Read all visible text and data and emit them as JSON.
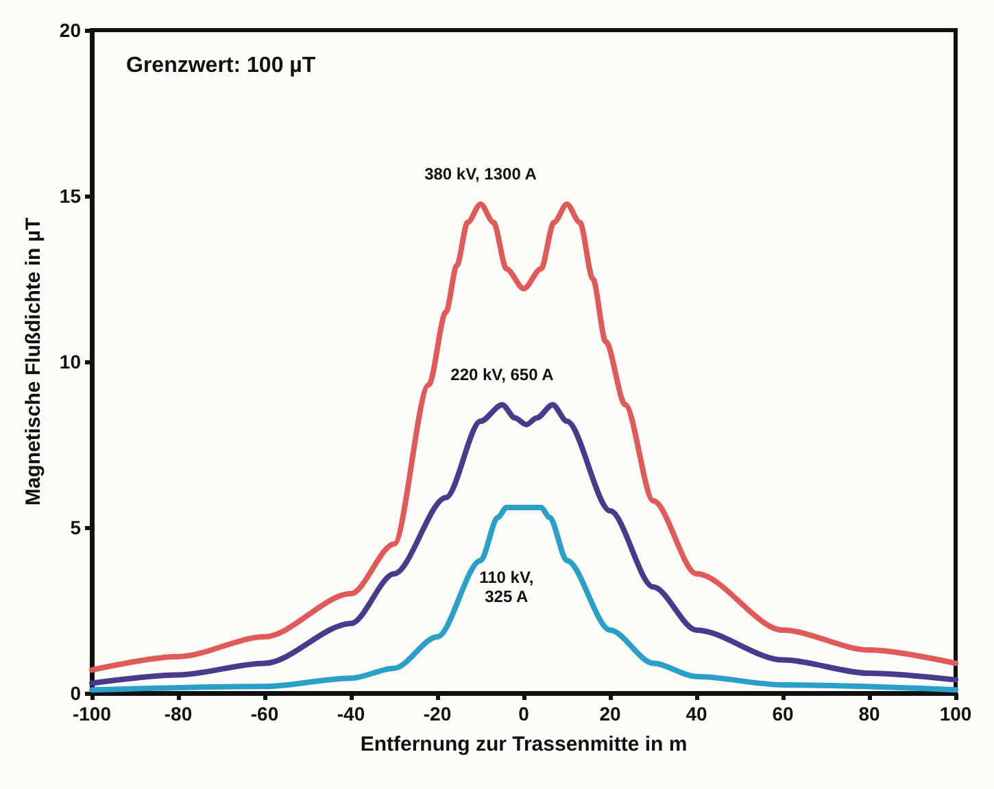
{
  "chart_data": {
    "type": "line",
    "xlabel": "Entfernung zur Trassenmitte in m",
    "ylabel": "Magnetische Flußdichte in µT",
    "xlim": [
      -100,
      100
    ],
    "xticks": [
      -100,
      -80,
      -60,
      -40,
      -20,
      0,
      20,
      40,
      60,
      80,
      100
    ],
    "ylim": [
      0,
      20
    ],
    "yticks": [
      0,
      5,
      10,
      15,
      20
    ],
    "grid": false,
    "marker": "none",
    "line_style": "solid",
    "series": [
      {
        "name": "380 kV, 1300 A",
        "color": "#e05a5a",
        "x": [
          -100,
          -80,
          -60,
          -40,
          -30,
          -22,
          -18,
          -15.5,
          -13,
          -10,
          -7,
          -4,
          0,
          4,
          7,
          10,
          13,
          16,
          19,
          23.5,
          30,
          40,
          60,
          80,
          100
        ],
        "values": [
          0.7,
          1.1,
          1.7,
          3.0,
          4.5,
          9.3,
          11.5,
          12.9,
          14.2,
          14.75,
          14.2,
          12.8,
          12.2,
          12.8,
          14.2,
          14.75,
          14.2,
          12.5,
          10.6,
          8.7,
          5.8,
          3.6,
          1.9,
          1.3,
          0.9
        ]
      },
      {
        "name": "220 kV, 650 A",
        "color": "#4a3a8c",
        "x": [
          -100,
          -80,
          -60,
          -40,
          -30,
          -18,
          -10,
          -5,
          -2,
          0.6,
          3,
          6.7,
          10,
          20,
          30,
          40,
          60,
          80,
          100
        ],
        "values": [
          0.3,
          0.55,
          0.9,
          2.1,
          3.6,
          5.9,
          8.2,
          8.7,
          8.3,
          8.1,
          8.3,
          8.7,
          8.2,
          5.5,
          3.2,
          1.9,
          1.0,
          0.6,
          0.4
        ]
      },
      {
        "name": "110 kV,\n325 A",
        "color": "#2a9fc8",
        "x": [
          -100,
          -60,
          -40,
          -30,
          -20,
          -10,
          -6,
          -4,
          0,
          4,
          6,
          10,
          20,
          30,
          40,
          60,
          100
        ],
        "values": [
          0.1,
          0.2,
          0.45,
          0.75,
          1.7,
          4.0,
          5.3,
          5.6,
          5.6,
          5.6,
          5.3,
          4.0,
          1.9,
          0.9,
          0.5,
          0.25,
          0.1
        ]
      }
    ],
    "annotations": [
      "Grenzwert: 100 µT"
    ]
  }
}
